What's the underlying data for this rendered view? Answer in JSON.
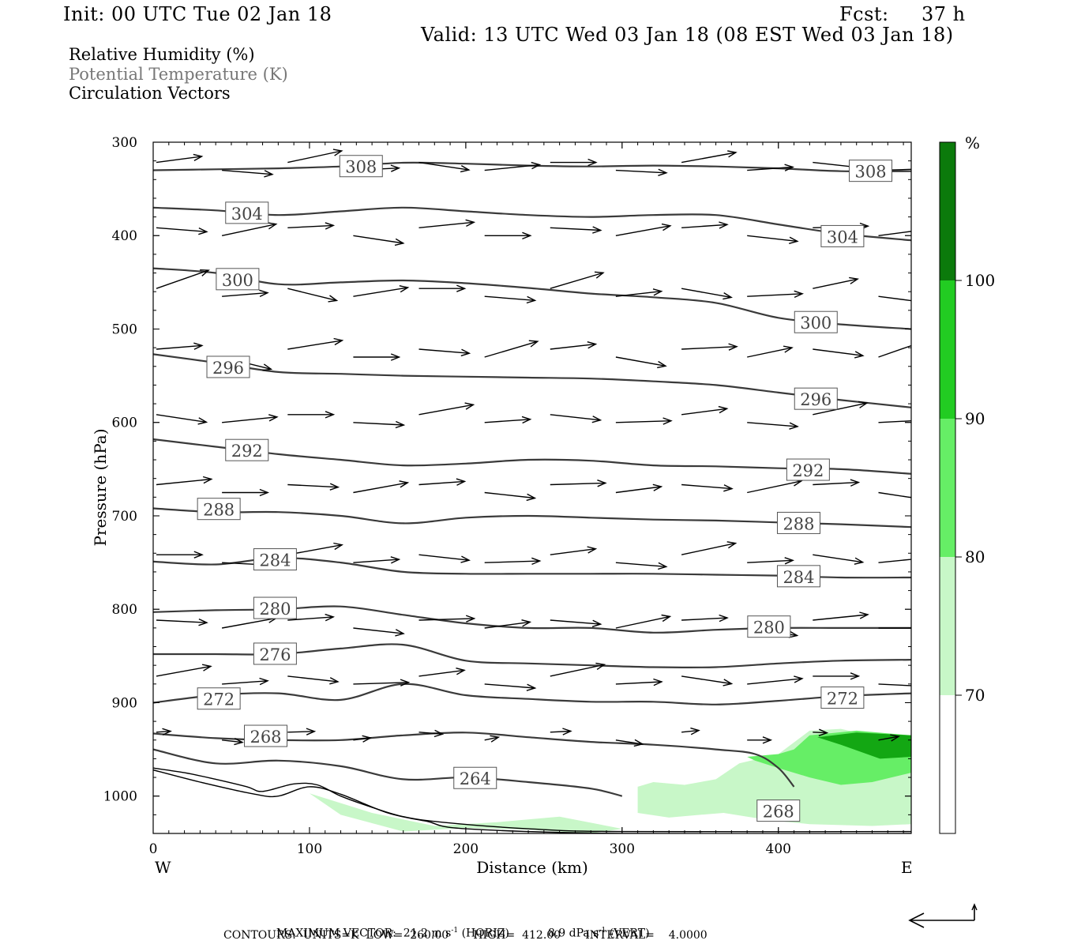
{
  "header": {
    "init": "Init: 00 UTC Tue 02 Jan 18",
    "fcst_label": "Fcst:",
    "fcst_value": "37 h",
    "valid": "Valid: 13 UTC Wed 03 Jan 18 (08 EST Wed 03 Jan 18)"
  },
  "fields": [
    {
      "label": "Relative Humidity (%)",
      "color": "#000000"
    },
    {
      "label": "Potential Temperature (K)",
      "color": "#777777"
    },
    {
      "label": "Circulation Vectors",
      "color": "#000000"
    }
  ],
  "chart_data": {
    "type": "cross-section",
    "xlabel": "Distance (km)",
    "ylabel": "Pressure (hPa)",
    "xlim": [
      0,
      485
    ],
    "ylim": [
      1040,
      300
    ],
    "x_ticks": [
      0,
      100,
      200,
      300,
      400
    ],
    "x_tick_labels": [
      "0",
      "100",
      "200",
      "300",
      "400"
    ],
    "y_ticks": [
      300,
      400,
      500,
      600,
      700,
      800,
      900,
      1000
    ],
    "y_tick_labels": [
      "300",
      "400",
      "500",
      "600",
      "700",
      "800",
      "900",
      "1000"
    ],
    "west_label": "W",
    "east_label": "E",
    "colorbar": {
      "unit": "%",
      "levels": [
        70,
        80,
        90,
        100
      ],
      "level_labels": [
        "70",
        "80",
        "90",
        "100"
      ],
      "colors": [
        "#ffffff",
        "#c8f7c8",
        "#66ee66",
        "#22cc22",
        "#13a713",
        "#0b7a0b"
      ]
    },
    "theta_contours": [
      {
        "label": "308",
        "x": [
          0,
          40,
          80,
          120,
          160,
          200,
          240,
          280,
          320,
          360,
          400,
          440,
          485
        ],
        "p": [
          330,
          329,
          328,
          326,
          322,
          323,
          325,
          326,
          325,
          326,
          328,
          331,
          331
        ],
        "label_pos": [
          [
            133,
            326
          ],
          [
            459,
            331
          ]
        ]
      },
      {
        "label": "304",
        "x": [
          0,
          40,
          80,
          120,
          160,
          200,
          240,
          280,
          320,
          360,
          400,
          440,
          485
        ],
        "p": [
          370,
          373,
          378,
          374,
          370,
          374,
          378,
          380,
          378,
          378,
          388,
          398,
          405
        ],
        "label_pos": [
          [
            60,
            376
          ],
          [
            441,
            401
          ]
        ]
      },
      {
        "label": "300",
        "x": [
          0,
          40,
          80,
          120,
          160,
          200,
          240,
          280,
          320,
          360,
          400,
          440,
          485
        ],
        "p": [
          435,
          440,
          452,
          450,
          448,
          451,
          456,
          462,
          466,
          472,
          488,
          495,
          500
        ],
        "label_pos": [
          [
            54,
            447
          ],
          [
            424,
            493
          ]
        ]
      },
      {
        "label": "296",
        "x": [
          0,
          40,
          80,
          120,
          160,
          200,
          240,
          280,
          320,
          360,
          400,
          440,
          485
        ],
        "p": [
          527,
          536,
          546,
          548,
          550,
          551,
          552,
          553,
          556,
          560,
          568,
          576,
          584
        ],
        "label_pos": [
          [
            48,
            541
          ],
          [
            424,
            575
          ]
        ]
      },
      {
        "label": "292",
        "x": [
          0,
          40,
          80,
          120,
          160,
          200,
          240,
          280,
          320,
          360,
          400,
          440,
          485
        ],
        "p": [
          618,
          626,
          634,
          640,
          646,
          644,
          640,
          641,
          646,
          647,
          649,
          650,
          655
        ],
        "label_pos": [
          [
            60,
            630
          ],
          [
            419,
            651
          ]
        ]
      },
      {
        "label": "288",
        "x": [
          0,
          40,
          80,
          120,
          160,
          200,
          240,
          280,
          320,
          360,
          400,
          440,
          485
        ],
        "p": [
          692,
          696,
          696,
          700,
          708,
          702,
          700,
          702,
          704,
          705,
          707,
          709,
          712
        ],
        "label_pos": [
          [
            42,
            693
          ],
          [
            413,
            708
          ]
        ]
      },
      {
        "label": "284",
        "x": [
          0,
          40,
          80,
          120,
          160,
          200,
          240,
          280,
          320,
          360,
          400,
          440,
          485
        ],
        "p": [
          749,
          752,
          745,
          750,
          760,
          762,
          762,
          762,
          762,
          763,
          764,
          766,
          766
        ],
        "label_pos": [
          [
            78,
            747
          ],
          [
            413,
            765
          ]
        ]
      },
      {
        "label": "280",
        "x": [
          0,
          40,
          80,
          120,
          160,
          200,
          240,
          280,
          320,
          360,
          400,
          440,
          485
        ],
        "p": [
          803,
          801,
          800,
          797,
          806,
          815,
          820,
          820,
          825,
          822,
          820,
          820,
          820
        ],
        "label_pos": [
          [
            78,
            799
          ],
          [
            394,
            819
          ]
        ]
      },
      {
        "label": "276",
        "x": [
          0,
          40,
          80,
          120,
          160,
          200,
          240,
          280,
          320,
          360,
          400,
          440,
          485
        ],
        "p": [
          848,
          848,
          848,
          842,
          838,
          855,
          858,
          860,
          862,
          862,
          858,
          855,
          854
        ],
        "label_pos": [
          [
            78,
            848
          ]
        ]
      },
      {
        "label": "272",
        "x": [
          0,
          40,
          80,
          120,
          160,
          200,
          240,
          280,
          320,
          360,
          400,
          440,
          485
        ],
        "p": [
          900,
          892,
          890,
          897,
          880,
          892,
          896,
          899,
          899,
          902,
          898,
          893,
          890
        ],
        "label_pos": [
          [
            42,
            896
          ],
          [
            441,
            895
          ]
        ]
      },
      {
        "label": "268",
        "x": [
          0,
          40,
          80,
          120,
          160,
          200,
          240,
          280,
          320,
          360,
          385,
          400,
          410
        ],
        "p": [
          933,
          938,
          940,
          940,
          935,
          932,
          937,
          942,
          945,
          950,
          955,
          970,
          990
        ],
        "label_pos": [
          [
            72,
            936
          ],
          [
            400,
            1016
          ]
        ]
      },
      {
        "label": "264",
        "x": [
          0,
          40,
          80,
          120,
          160,
          200,
          240,
          280,
          300
        ],
        "p": [
          950,
          965,
          962,
          968,
          982,
          980,
          985,
          992,
          1000
        ],
        "label_pos": [
          [
            206,
            981
          ]
        ]
      }
    ],
    "rh_regions": [
      {
        "level": "70-80",
        "color": "#c8f7c8",
        "x": [
          310,
          320,
          340,
          360,
          375,
          400,
          420,
          440,
          485,
          485,
          460,
          420,
          395,
          380,
          365,
          350,
          330,
          310
        ],
        "p": [
          990,
          985,
          988,
          982,
          965,
          955,
          930,
          928,
          945,
          1030,
          1032,
          1030,
          1026,
          1022,
          1018,
          1020,
          1023,
          1018
        ]
      },
      {
        "level": "80-90",
        "color": "#66ee66",
        "x": [
          380,
          400,
          410,
          420,
          450,
          485,
          485,
          460,
          440,
          420,
          400,
          385
        ],
        "p": [
          958,
          955,
          950,
          935,
          930,
          935,
          975,
          985,
          988,
          980,
          970,
          962
        ]
      },
      {
        "level": "90-100",
        "color": "#13a713",
        "x": [
          425,
          450,
          485,
          485,
          465,
          440
        ],
        "p": [
          937,
          932,
          935,
          958,
          960,
          945
        ]
      },
      {
        "level": "70-80",
        "color": "#c8f7c8",
        "x": [
          100,
          140,
          180,
          220,
          260,
          300,
          280,
          240,
          200,
          160,
          120
        ],
        "p": [
          997,
          1018,
          1032,
          1028,
          1022,
          1035,
          1040,
          1036,
          1034,
          1038,
          1020
        ]
      }
    ],
    "vectors": [
      {
        "x": [
          0,
          42,
          84,
          126,
          168,
          210,
          252,
          294,
          336,
          378,
          420,
          462
        ],
        "p": 325
      },
      {
        "x": [
          0,
          42,
          84,
          126,
          168,
          210,
          252,
          294,
          336,
          378,
          420,
          462
        ],
        "p": 395
      },
      {
        "x": [
          0,
          42,
          84,
          126,
          168,
          210,
          252,
          294,
          336,
          378,
          420,
          462
        ],
        "p": 460
      },
      {
        "x": [
          0,
          42,
          84,
          126,
          168,
          210,
          252,
          294,
          336,
          378,
          420,
          462
        ],
        "p": 525
      },
      {
        "x": [
          0,
          42,
          84,
          126,
          168,
          210,
          252,
          294,
          336,
          378,
          420,
          462
        ],
        "p": 595
      },
      {
        "x": [
          0,
          42,
          84,
          126,
          168,
          210,
          252,
          294,
          336,
          378,
          420,
          462
        ],
        "p": 670
      },
      {
        "x": [
          0,
          42,
          84,
          126,
          168,
          210,
          252,
          294,
          336,
          378,
          420,
          462
        ],
        "p": 745
      },
      {
        "x": [
          0,
          42,
          84,
          126,
          168,
          210,
          252,
          294,
          336,
          378,
          420,
          462
        ],
        "p": 815
      },
      {
        "x": [
          0,
          42,
          84,
          126,
          168,
          210,
          252,
          294,
          336,
          378,
          420,
          462
        ],
        "p": 875
      },
      {
        "x": [
          0,
          42,
          84,
          126,
          168,
          210,
          252,
          294,
          336,
          378,
          420,
          462
        ],
        "p": 935
      }
    ],
    "max_vector_horiz": "21.2 m s",
    "max_vector_vert": "8.9 dPa s"
  },
  "footer": {
    "line1_label": "MAXIMUM VECTOR:",
    "line1_horiz": "21.2 m s",
    "line1_horiz_suffix": "(HORIZ)",
    "line1_vert": "8.9 dPa s",
    "line1_vert_suffix": "(VERT)",
    "sup": "-1",
    "line2": "CONTOURS:  UNITS=K  LOW=  260.00       HIGH=  412.00       INTERVAL=    4.0000"
  }
}
